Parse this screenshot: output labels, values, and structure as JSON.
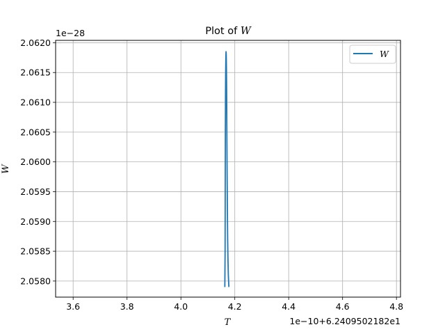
{
  "chart_data": {
    "type": "line",
    "title": "Plot of W",
    "title_prefix": "Plot of ",
    "title_var": "W",
    "xlabel": "T",
    "ylabel": "W",
    "x_offset_text": "1e−10+6.2409502182e1",
    "y_offset_text": "1e−28",
    "xlim": [
      3.535,
      4.815
    ],
    "ylim": [
      2.05773,
      2.06204
    ],
    "xticks": [
      3.6,
      3.8,
      4.0,
      4.2,
      4.4,
      4.6,
      4.8
    ],
    "xtick_labels": [
      "3.6",
      "3.8",
      "4.0",
      "4.2",
      "4.4",
      "4.6",
      "4.8"
    ],
    "yticks": [
      2.058,
      2.0585,
      2.059,
      2.0595,
      2.06,
      2.0605,
      2.061,
      2.0615,
      2.062
    ],
    "ytick_labels": [
      "2.0580",
      "2.0585",
      "2.0590",
      "2.0595",
      "2.0600",
      "2.0605",
      "2.0610",
      "2.0615",
      "2.0620"
    ],
    "grid": true,
    "legend_position": "top-right",
    "series": [
      {
        "name": "W",
        "color": "#1f77b4",
        "x": [
          4.163,
          4.164,
          4.1645,
          4.165,
          4.1655,
          4.166,
          4.1665,
          4.167,
          4.1675,
          4.168,
          4.1685,
          4.169,
          4.1695,
          4.17,
          4.1705,
          4.1715,
          4.1725,
          4.1735,
          4.1745,
          4.176,
          4.178
        ],
        "y": [
          2.0579,
          2.0585,
          2.0595,
          2.0605,
          2.0611,
          2.06145,
          2.06165,
          2.06178,
          2.06185,
          2.06182,
          2.06172,
          2.06155,
          2.0613,
          2.06095,
          2.0605,
          2.0598,
          2.0592,
          2.0587,
          2.0584,
          2.0581,
          2.0579
        ]
      }
    ]
  }
}
